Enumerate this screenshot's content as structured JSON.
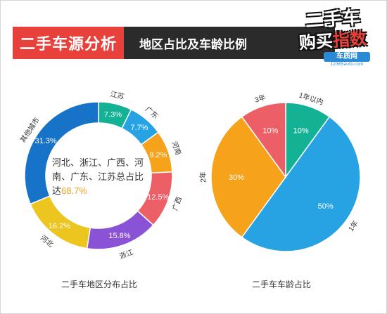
{
  "header": {
    "title": "二手车源分析",
    "subtitle": "地区占比及车龄比例"
  },
  "logo": {
    "line1": "二手车",
    "line2a": "购买",
    "line2b": "指数",
    "badge": "车质网",
    "site": "12365auto.com"
  },
  "colors": {
    "teal": "#14b294",
    "skyblue": "#27a3e3",
    "orange": "#f6a21a",
    "red": "#ec5f66",
    "purple": "#8a53d6",
    "yellow": "#ecc61e",
    "blue": "#1673c7",
    "title_red": "#e8403a",
    "title_dark": "#2b2b2b"
  },
  "chart_data": [
    {
      "type": "pie",
      "variant": "donut",
      "title": "二手车地区分布占比",
      "center_text_main": "河北、浙江、广西、河南、广东、江苏总占比达",
      "center_text_value": "68.7%",
      "slices": [
        {
          "label": "江苏",
          "value": 7.3,
          "value_label": "7.3%",
          "color": "#14b294"
        },
        {
          "label": "广东",
          "value": 7.7,
          "value_label": "7.7%",
          "color": "#27a3e3"
        },
        {
          "label": "河南",
          "value": 9.2,
          "value_label": "9.2%",
          "color": "#f6a21a"
        },
        {
          "label": "广西",
          "value": 12.5,
          "value_label": "12.5%",
          "color": "#ec5f66"
        },
        {
          "label": "浙江",
          "value": 15.8,
          "value_label": "15.8%",
          "color": "#8a53d6"
        },
        {
          "label": "河北",
          "value": 16.2,
          "value_label": "16.2%",
          "color": "#ecc61e"
        },
        {
          "label": "其他城市",
          "value": 31.3,
          "value_label": "31.3%",
          "color": "#1673c7"
        }
      ]
    },
    {
      "type": "pie",
      "title": "二手车车龄占比",
      "slices": [
        {
          "label": "1年以内",
          "value": 10,
          "value_label": "10%",
          "color": "#14b294"
        },
        {
          "label": "1年",
          "value": 50,
          "value_label": "50%",
          "color": "#27a3e3"
        },
        {
          "label": "2年",
          "value": 30,
          "value_label": "30%",
          "color": "#f6a21a"
        },
        {
          "label": "3年",
          "value": 10,
          "value_label": "10%",
          "color": "#ec5f66"
        }
      ]
    }
  ]
}
